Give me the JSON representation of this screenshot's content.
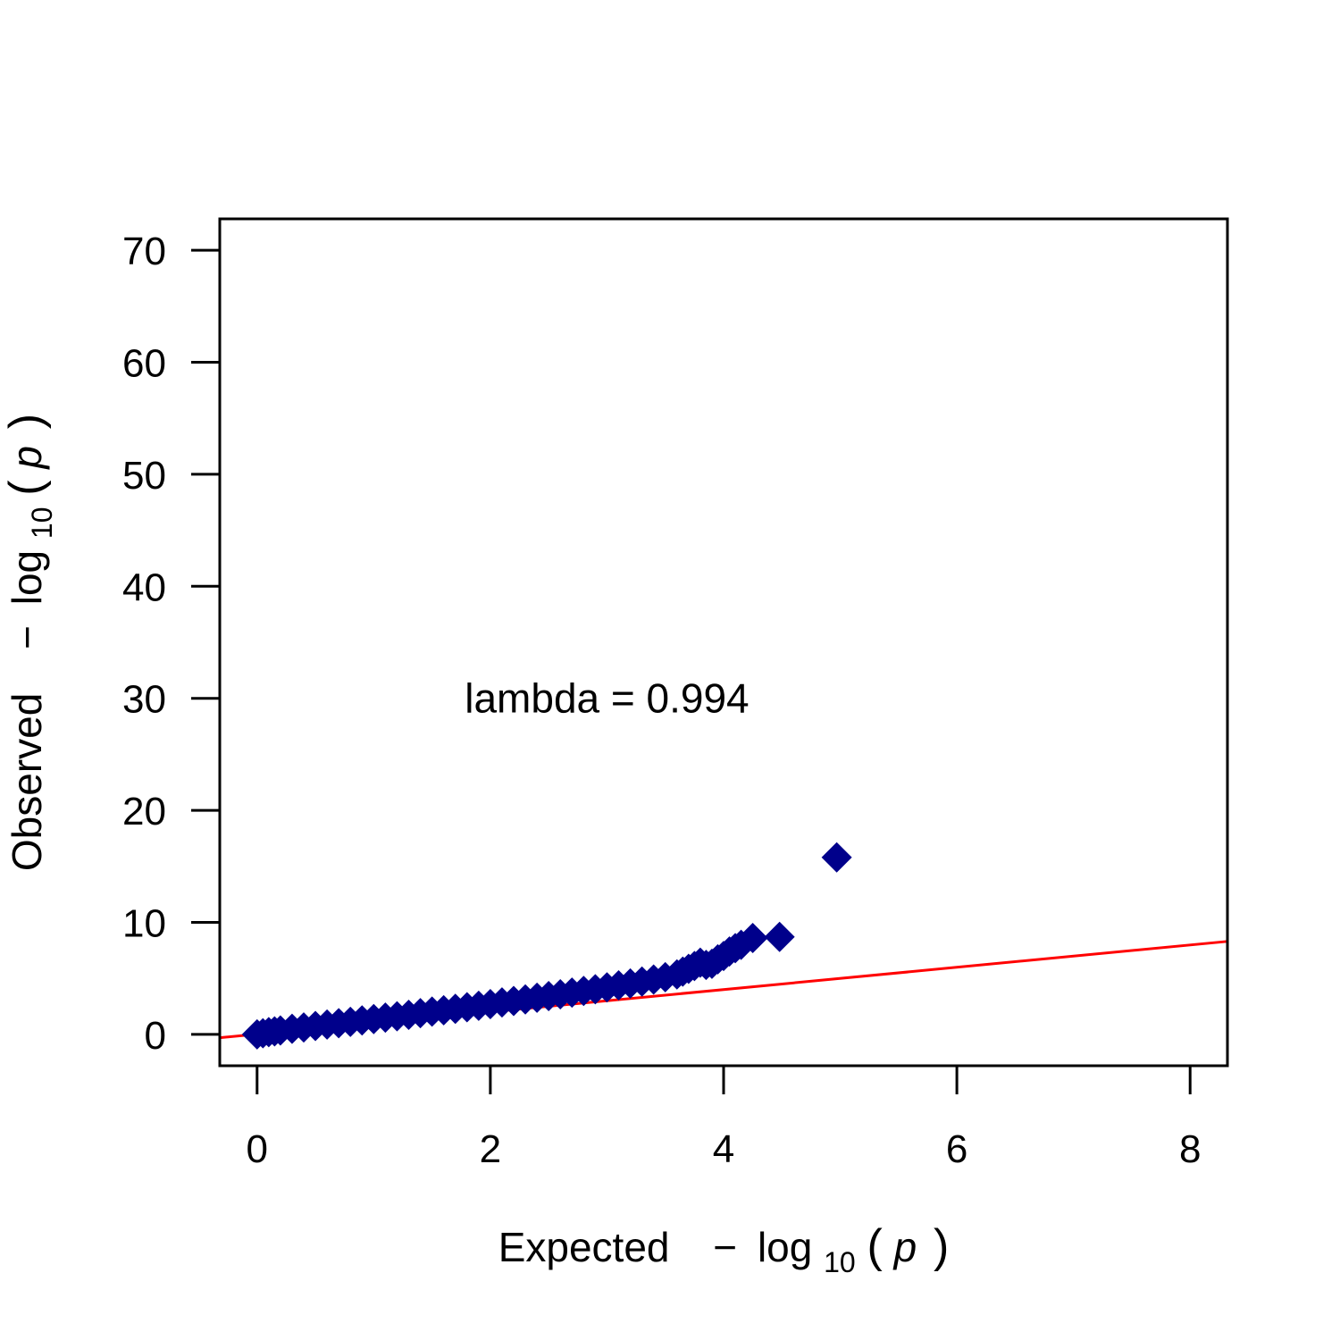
{
  "chart_data": {
    "type": "scatter",
    "title": "",
    "xlabel": {
      "prefix": "Expected",
      "minus": "−",
      "log": "log",
      "sub": "10",
      "open": "(",
      "var": "p",
      "close": ")"
    },
    "ylabel": {
      "prefix": "Observed",
      "minus": "−",
      "log": "log",
      "sub": "10",
      "open": "(",
      "var": "p",
      "close": ")"
    },
    "xlim": [
      -0.32,
      8.32
    ],
    "ylim": [
      -2.8,
      72.8
    ],
    "xticks": [
      0,
      2,
      4,
      6,
      8
    ],
    "yticks": [
      0,
      10,
      20,
      30,
      40,
      50,
      60,
      70
    ],
    "annotation": {
      "text": "lambda = 0.994",
      "x": 3.0,
      "y": 30
    },
    "reference_line": {
      "color": "#ff0000",
      "x": [
        -0.32,
        8.32
      ],
      "y": [
        -0.3,
        8.3
      ]
    },
    "marker": {
      "shape": "diamond",
      "color": "#00008b"
    },
    "grid": false,
    "legend": "none",
    "points": [
      [
        0.0,
        0.0
      ],
      [
        0.05,
        0.1
      ],
      [
        0.1,
        0.2
      ],
      [
        0.15,
        0.27
      ],
      [
        0.2,
        0.35
      ],
      [
        0.3,
        0.5
      ],
      [
        0.4,
        0.62
      ],
      [
        0.5,
        0.75
      ],
      [
        0.6,
        0.88
      ],
      [
        0.7,
        1.0
      ],
      [
        0.8,
        1.12
      ],
      [
        0.9,
        1.25
      ],
      [
        1.0,
        1.37
      ],
      [
        1.1,
        1.5
      ],
      [
        1.2,
        1.62
      ],
      [
        1.3,
        1.75
      ],
      [
        1.4,
        1.9
      ],
      [
        1.5,
        2.03
      ],
      [
        1.6,
        2.15
      ],
      [
        1.7,
        2.28
      ],
      [
        1.8,
        2.42
      ],
      [
        1.9,
        2.55
      ],
      [
        2.0,
        2.7
      ],
      [
        2.1,
        2.85
      ],
      [
        2.2,
        2.98
      ],
      [
        2.3,
        3.12
      ],
      [
        2.4,
        3.27
      ],
      [
        2.5,
        3.42
      ],
      [
        2.6,
        3.58
      ],
      [
        2.7,
        3.73
      ],
      [
        2.8,
        3.88
      ],
      [
        2.9,
        4.03
      ],
      [
        3.0,
        4.2
      ],
      [
        3.1,
        4.38
      ],
      [
        3.2,
        4.55
      ],
      [
        3.3,
        4.72
      ],
      [
        3.4,
        4.9
      ],
      [
        3.5,
        5.1
      ],
      [
        3.6,
        5.35
      ],
      [
        3.65,
        5.6
      ],
      [
        3.7,
        5.85
      ],
      [
        3.75,
        6.1
      ],
      [
        3.8,
        6.4
      ],
      [
        3.85,
        6.2
      ],
      [
        3.9,
        6.3
      ],
      [
        3.95,
        6.7
      ],
      [
        4.0,
        7.0
      ],
      [
        4.05,
        7.4
      ],
      [
        4.1,
        7.7
      ],
      [
        4.15,
        8.0
      ],
      [
        4.25,
        8.6
      ],
      [
        4.48,
        8.7
      ],
      [
        4.97,
        15.8
      ]
    ]
  }
}
